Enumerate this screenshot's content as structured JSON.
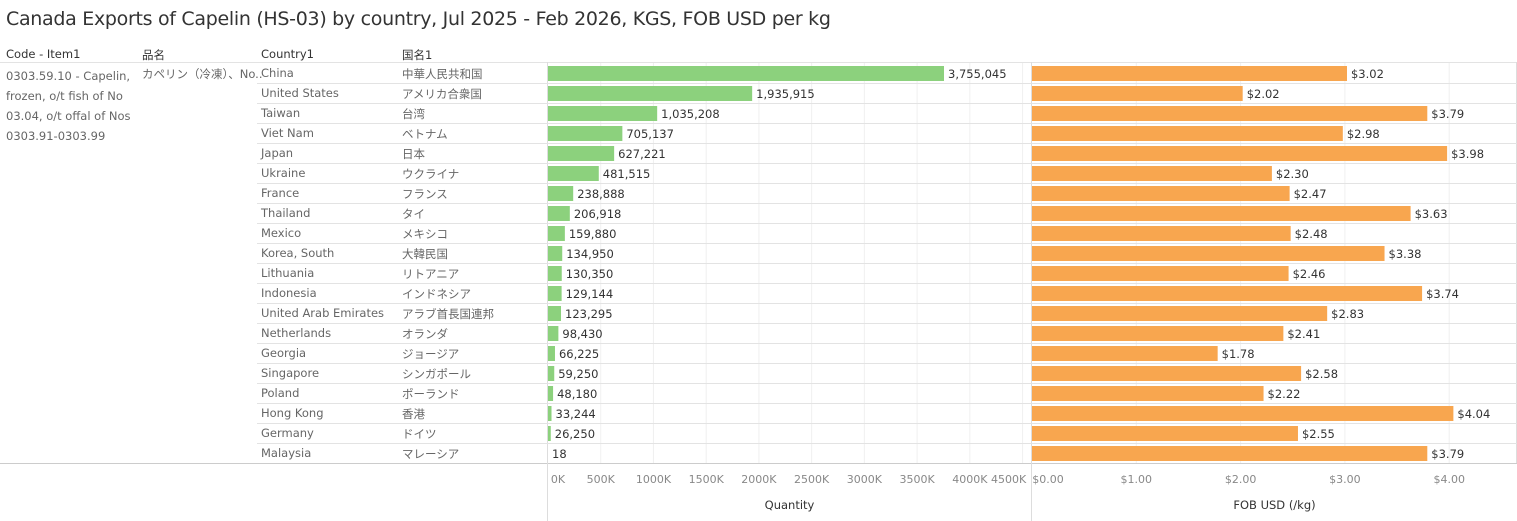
{
  "title": "Canada Exports of Capelin (HS-03) by country, Jul 2025 - Feb 2026, KGS, FOB USD per kg",
  "headers": {
    "code": "Code - Item1",
    "item_jp": "品名",
    "country": "Country1",
    "country_jp": "国名1"
  },
  "code_item": "0303.59.10 - Capelin, frozen, o/t fish of No 03.04, o/t offal of Nos 0303.91-0303.99",
  "item_jp": "カペリン（冷凍）、No..",
  "chart_data": {
    "type": "bar",
    "orientation": "horizontal",
    "categories": [
      "China",
      "United States",
      "Taiwan",
      "Viet Nam",
      "Japan",
      "Ukraine",
      "France",
      "Thailand",
      "Mexico",
      "Korea, South",
      "Lithuania",
      "Indonesia",
      "United Arab Emirates",
      "Netherlands",
      "Georgia",
      "Singapore",
      "Poland",
      "Hong Kong",
      "Germany",
      "Malaysia"
    ],
    "categories_jp": [
      "中華人民共和国",
      "アメリカ合衆国",
      "台湾",
      "ベトナム",
      "日本",
      "ウクライナ",
      "フランス",
      "タイ",
      "メキシコ",
      "大韓民国",
      "リトアニア",
      "インドネシア",
      "アラブ首長国連邦",
      "オランダ",
      "ジョージア",
      "シンガポール",
      "ポーランド",
      "香港",
      "ドイツ",
      "マレーシア"
    ],
    "series": [
      {
        "name": "Quantity",
        "color": "#8cd17d",
        "xlim": [
          0,
          4580000
        ],
        "ticks": [
          "0K",
          "500K",
          "1000K",
          "1500K",
          "2000K",
          "2500K",
          "3000K",
          "3500K",
          "4000K",
          "4500K"
        ],
        "tick_values": [
          0,
          500000,
          1000000,
          1500000,
          2000000,
          2500000,
          3000000,
          3500000,
          4000000,
          4500000
        ],
        "values": [
          3755045,
          1935915,
          1035208,
          705137,
          627221,
          481515,
          238888,
          206918,
          159880,
          134950,
          130350,
          129144,
          123295,
          98430,
          66225,
          59250,
          48180,
          33244,
          26250,
          18
        ],
        "labels": [
          "3,755,045",
          "1,935,915",
          "1,035,208",
          "705,137",
          "627,221",
          "481,515",
          "238,888",
          "206,918",
          "159,880",
          "134,950",
          "130,350",
          "129,144",
          "123,295",
          "98,430",
          "66,225",
          "59,250",
          "48,180",
          "33,244",
          "26,250",
          "18"
        ]
      },
      {
        "name": "FOB USD (/kg)",
        "color": "#f8a64f",
        "xlim": [
          0,
          4.65
        ],
        "ticks": [
          "$0.00",
          "$1.00",
          "$2.00",
          "$3.00",
          "$4.00"
        ],
        "tick_values": [
          0,
          1,
          2,
          3,
          4
        ],
        "values": [
          3.02,
          2.02,
          3.79,
          2.98,
          3.98,
          2.3,
          2.47,
          3.63,
          2.48,
          3.38,
          2.46,
          3.74,
          2.83,
          2.41,
          1.78,
          2.58,
          2.22,
          4.04,
          2.55,
          3.79
        ],
        "labels": [
          "$3.02",
          "$2.02",
          "$3.79",
          "$2.98",
          "$3.98",
          "$2.30",
          "$2.47",
          "$3.63",
          "$2.48",
          "$3.38",
          "$2.46",
          "$3.74",
          "$2.83",
          "$2.41",
          "$1.78",
          "$2.58",
          "$2.22",
          "$4.04",
          "$2.55",
          "$3.79"
        ]
      }
    ],
    "grid": true
  }
}
